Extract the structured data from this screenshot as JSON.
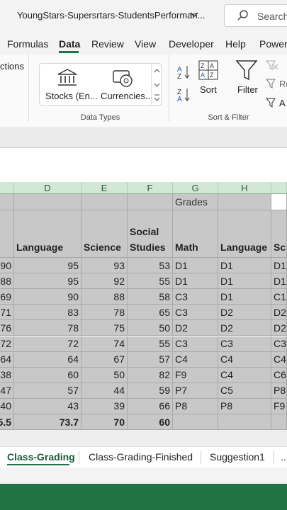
{
  "titlebar": {
    "title": "YoungStars-Supersrtars-StudentsPerforman...",
    "search": "Search"
  },
  "tabs": [
    "Formulas",
    "Data",
    "Review",
    "View",
    "Developer",
    "Help",
    "Power"
  ],
  "ribbon": {
    "connections": "ctions",
    "data_types": {
      "items": [
        "Stocks (En...",
        "Currencies..."
      ],
      "label": "Data Types"
    },
    "sort_filter": {
      "sort": "Sort",
      "filter": "Filter",
      "reapply": "Re",
      "advanced": "A",
      "label": "Sort & Filter"
    }
  },
  "column_letters": [
    "D",
    "E",
    "F",
    "G",
    "H"
  ],
  "sheet": {
    "group_header": "Grades",
    "headers": [
      "Language",
      "Science",
      "Social Studies",
      "Math",
      "Language",
      "Sci"
    ],
    "rows": [
      [
        "90",
        "95",
        "93",
        "53",
        "D1",
        "D1",
        "D1"
      ],
      [
        "88",
        "95",
        "92",
        "55",
        "D1",
        "D1",
        "D1"
      ],
      [
        "69",
        "90",
        "88",
        "58",
        "C3",
        "D1",
        "C1"
      ],
      [
        "71",
        "83",
        "78",
        "65",
        "C3",
        "D2",
        "D2"
      ],
      [
        "76",
        "78",
        "75",
        "50",
        "D2",
        "D2",
        "D2"
      ],
      [
        "72",
        "72",
        "74",
        "55",
        "C3",
        "C3",
        "C3"
      ],
      [
        "64",
        "64",
        "67",
        "57",
        "C4",
        "C4",
        "C4"
      ],
      [
        "38",
        "60",
        "50",
        "82",
        "F9",
        "C4",
        "C6"
      ],
      [
        "47",
        "57",
        "44",
        "59",
        "P7",
        "C5",
        "P8"
      ],
      [
        "40",
        "43",
        "39",
        "66",
        "P8",
        "P8",
        "F9"
      ]
    ],
    "totals": [
      "5.5",
      "73.7",
      "70",
      "60"
    ]
  },
  "sheet_tabs": [
    "Class-Grading",
    "Class-Grading-Finished",
    "Suggestion1",
    "..."
  ]
}
